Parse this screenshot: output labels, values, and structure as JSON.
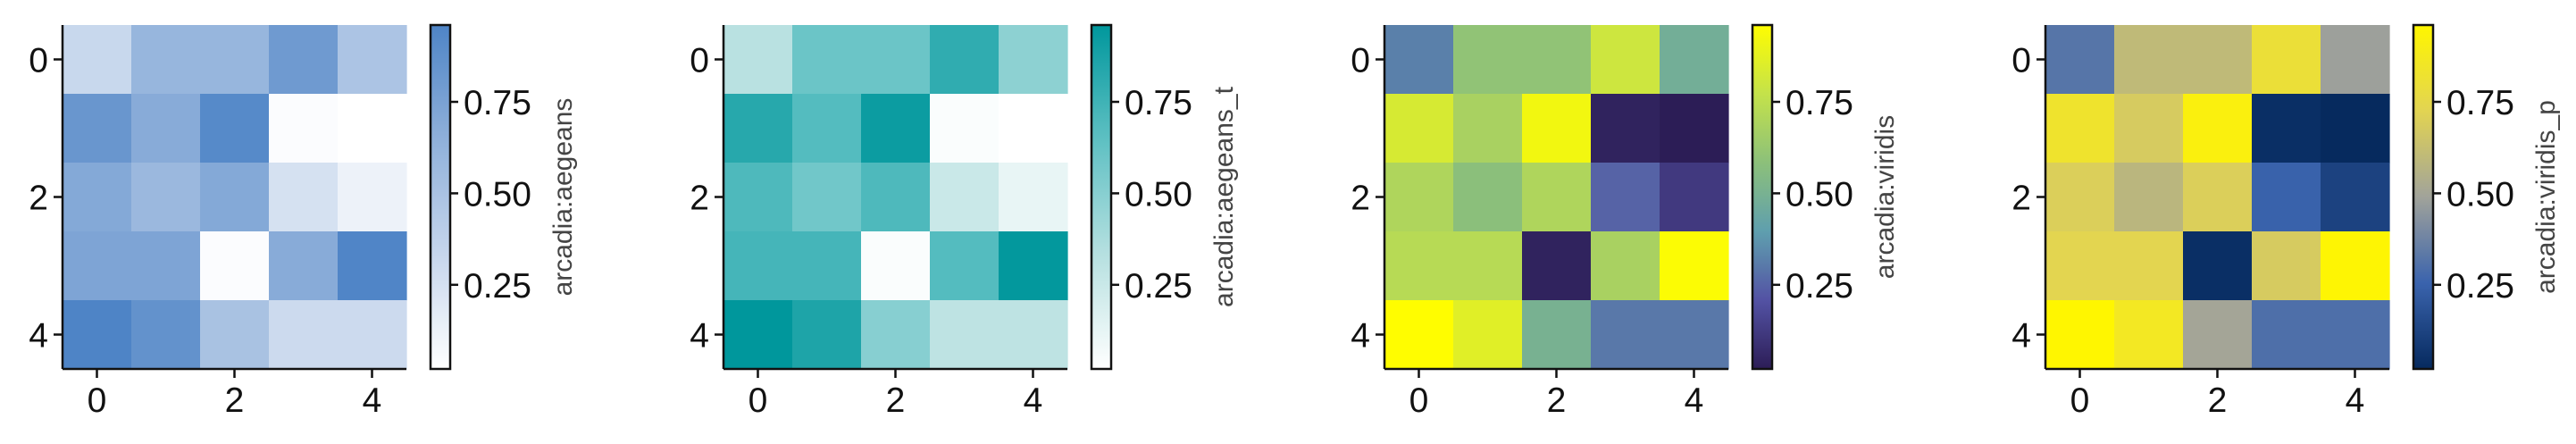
{
  "chart_data": [
    {
      "type": "heatmap",
      "colormap": "arcadia:aegeans",
      "colorbar_label": "arcadia:aegeans",
      "colors": [
        "#ffffff",
        "#c6d6ec",
        "#8fb0da",
        "#4e84c6"
      ],
      "x_ticks": [
        "0",
        "2",
        "4"
      ],
      "y_ticks": [
        "0",
        "2",
        "4"
      ],
      "colorbar_ticks": [
        "0.25",
        "0.50",
        "0.75"
      ],
      "colorbar_tick_values": [
        0.25,
        0.5,
        0.75
      ],
      "value_range": [
        0.02,
        0.96
      ],
      "values": [
        [
          0.32,
          0.6,
          0.6,
          0.8,
          0.48
        ],
        [
          0.83,
          0.68,
          0.92,
          0.04,
          0.02
        ],
        [
          0.7,
          0.58,
          0.7,
          0.25,
          0.12
        ],
        [
          0.73,
          0.73,
          0.04,
          0.68,
          0.95
        ],
        [
          0.96,
          0.86,
          0.5,
          0.3,
          0.3
        ]
      ]
    },
    {
      "type": "heatmap",
      "colormap": "arcadia:aegeans_t",
      "colorbar_label": "arcadia:aegeans_t",
      "colors": [
        "#ffffff",
        "#b6e0e0",
        "#5ec0c3",
        "#00979c"
      ],
      "x_ticks": [
        "0",
        "2",
        "4"
      ],
      "y_ticks": [
        "0",
        "2",
        "4"
      ],
      "colorbar_ticks": [
        "0.25",
        "0.50",
        "0.75"
      ],
      "colorbar_tick_values": [
        0.25,
        0.5,
        0.75
      ],
      "value_range": [
        0.02,
        0.96
      ],
      "values": [
        [
          0.32,
          0.6,
          0.6,
          0.8,
          0.48
        ],
        [
          0.83,
          0.68,
          0.92,
          0.04,
          0.02
        ],
        [
          0.7,
          0.58,
          0.7,
          0.25,
          0.12
        ],
        [
          0.73,
          0.73,
          0.04,
          0.68,
          0.95
        ],
        [
          0.96,
          0.86,
          0.5,
          0.3,
          0.3
        ]
      ]
    },
    {
      "type": "heatmap",
      "colormap": "arcadia:viridis",
      "colorbar_label": "arcadia:viridis",
      "colors": [
        "#2c1d56",
        "#5352a4",
        "#5f9fae",
        "#8cc07a",
        "#c4e24a",
        "#fffd00"
      ],
      "x_ticks": [
        "0",
        "2",
        "4"
      ],
      "y_ticks": [
        "0",
        "2",
        "4"
      ],
      "colorbar_ticks": [
        "0.25",
        "0.50",
        "0.75"
      ],
      "colorbar_tick_values": [
        0.25,
        0.5,
        0.75
      ],
      "value_range": [
        0.02,
        0.96
      ],
      "values": [
        [
          0.32,
          0.6,
          0.6,
          0.8,
          0.48
        ],
        [
          0.83,
          0.68,
          0.92,
          0.04,
          0.02
        ],
        [
          0.7,
          0.58,
          0.7,
          0.25,
          0.12
        ],
        [
          0.73,
          0.73,
          0.04,
          0.68,
          0.95
        ],
        [
          0.96,
          0.86,
          0.5,
          0.3,
          0.3
        ]
      ]
    },
    {
      "type": "heatmap",
      "colormap": "arcadia:viridis_p",
      "colorbar_label": "arcadia:viridis_p",
      "colors": [
        "#062a5e",
        "#3a63ad",
        "#a1a39a",
        "#e2d452",
        "#fff600"
      ],
      "x_ticks": [
        "0",
        "2",
        "4"
      ],
      "y_ticks": [
        "0",
        "2",
        "4"
      ],
      "colorbar_ticks": [
        "0.25",
        "0.50",
        "0.75"
      ],
      "colorbar_tick_values": [
        0.25,
        0.5,
        0.75
      ],
      "value_range": [
        0.02,
        0.96
      ],
      "values": [
        [
          0.32,
          0.6,
          0.6,
          0.8,
          0.48
        ],
        [
          0.83,
          0.68,
          0.92,
          0.04,
          0.02
        ],
        [
          0.7,
          0.58,
          0.7,
          0.25,
          0.12
        ],
        [
          0.73,
          0.73,
          0.04,
          0.68,
          0.95
        ],
        [
          0.96,
          0.86,
          0.5,
          0.3,
          0.3
        ]
      ]
    }
  ]
}
